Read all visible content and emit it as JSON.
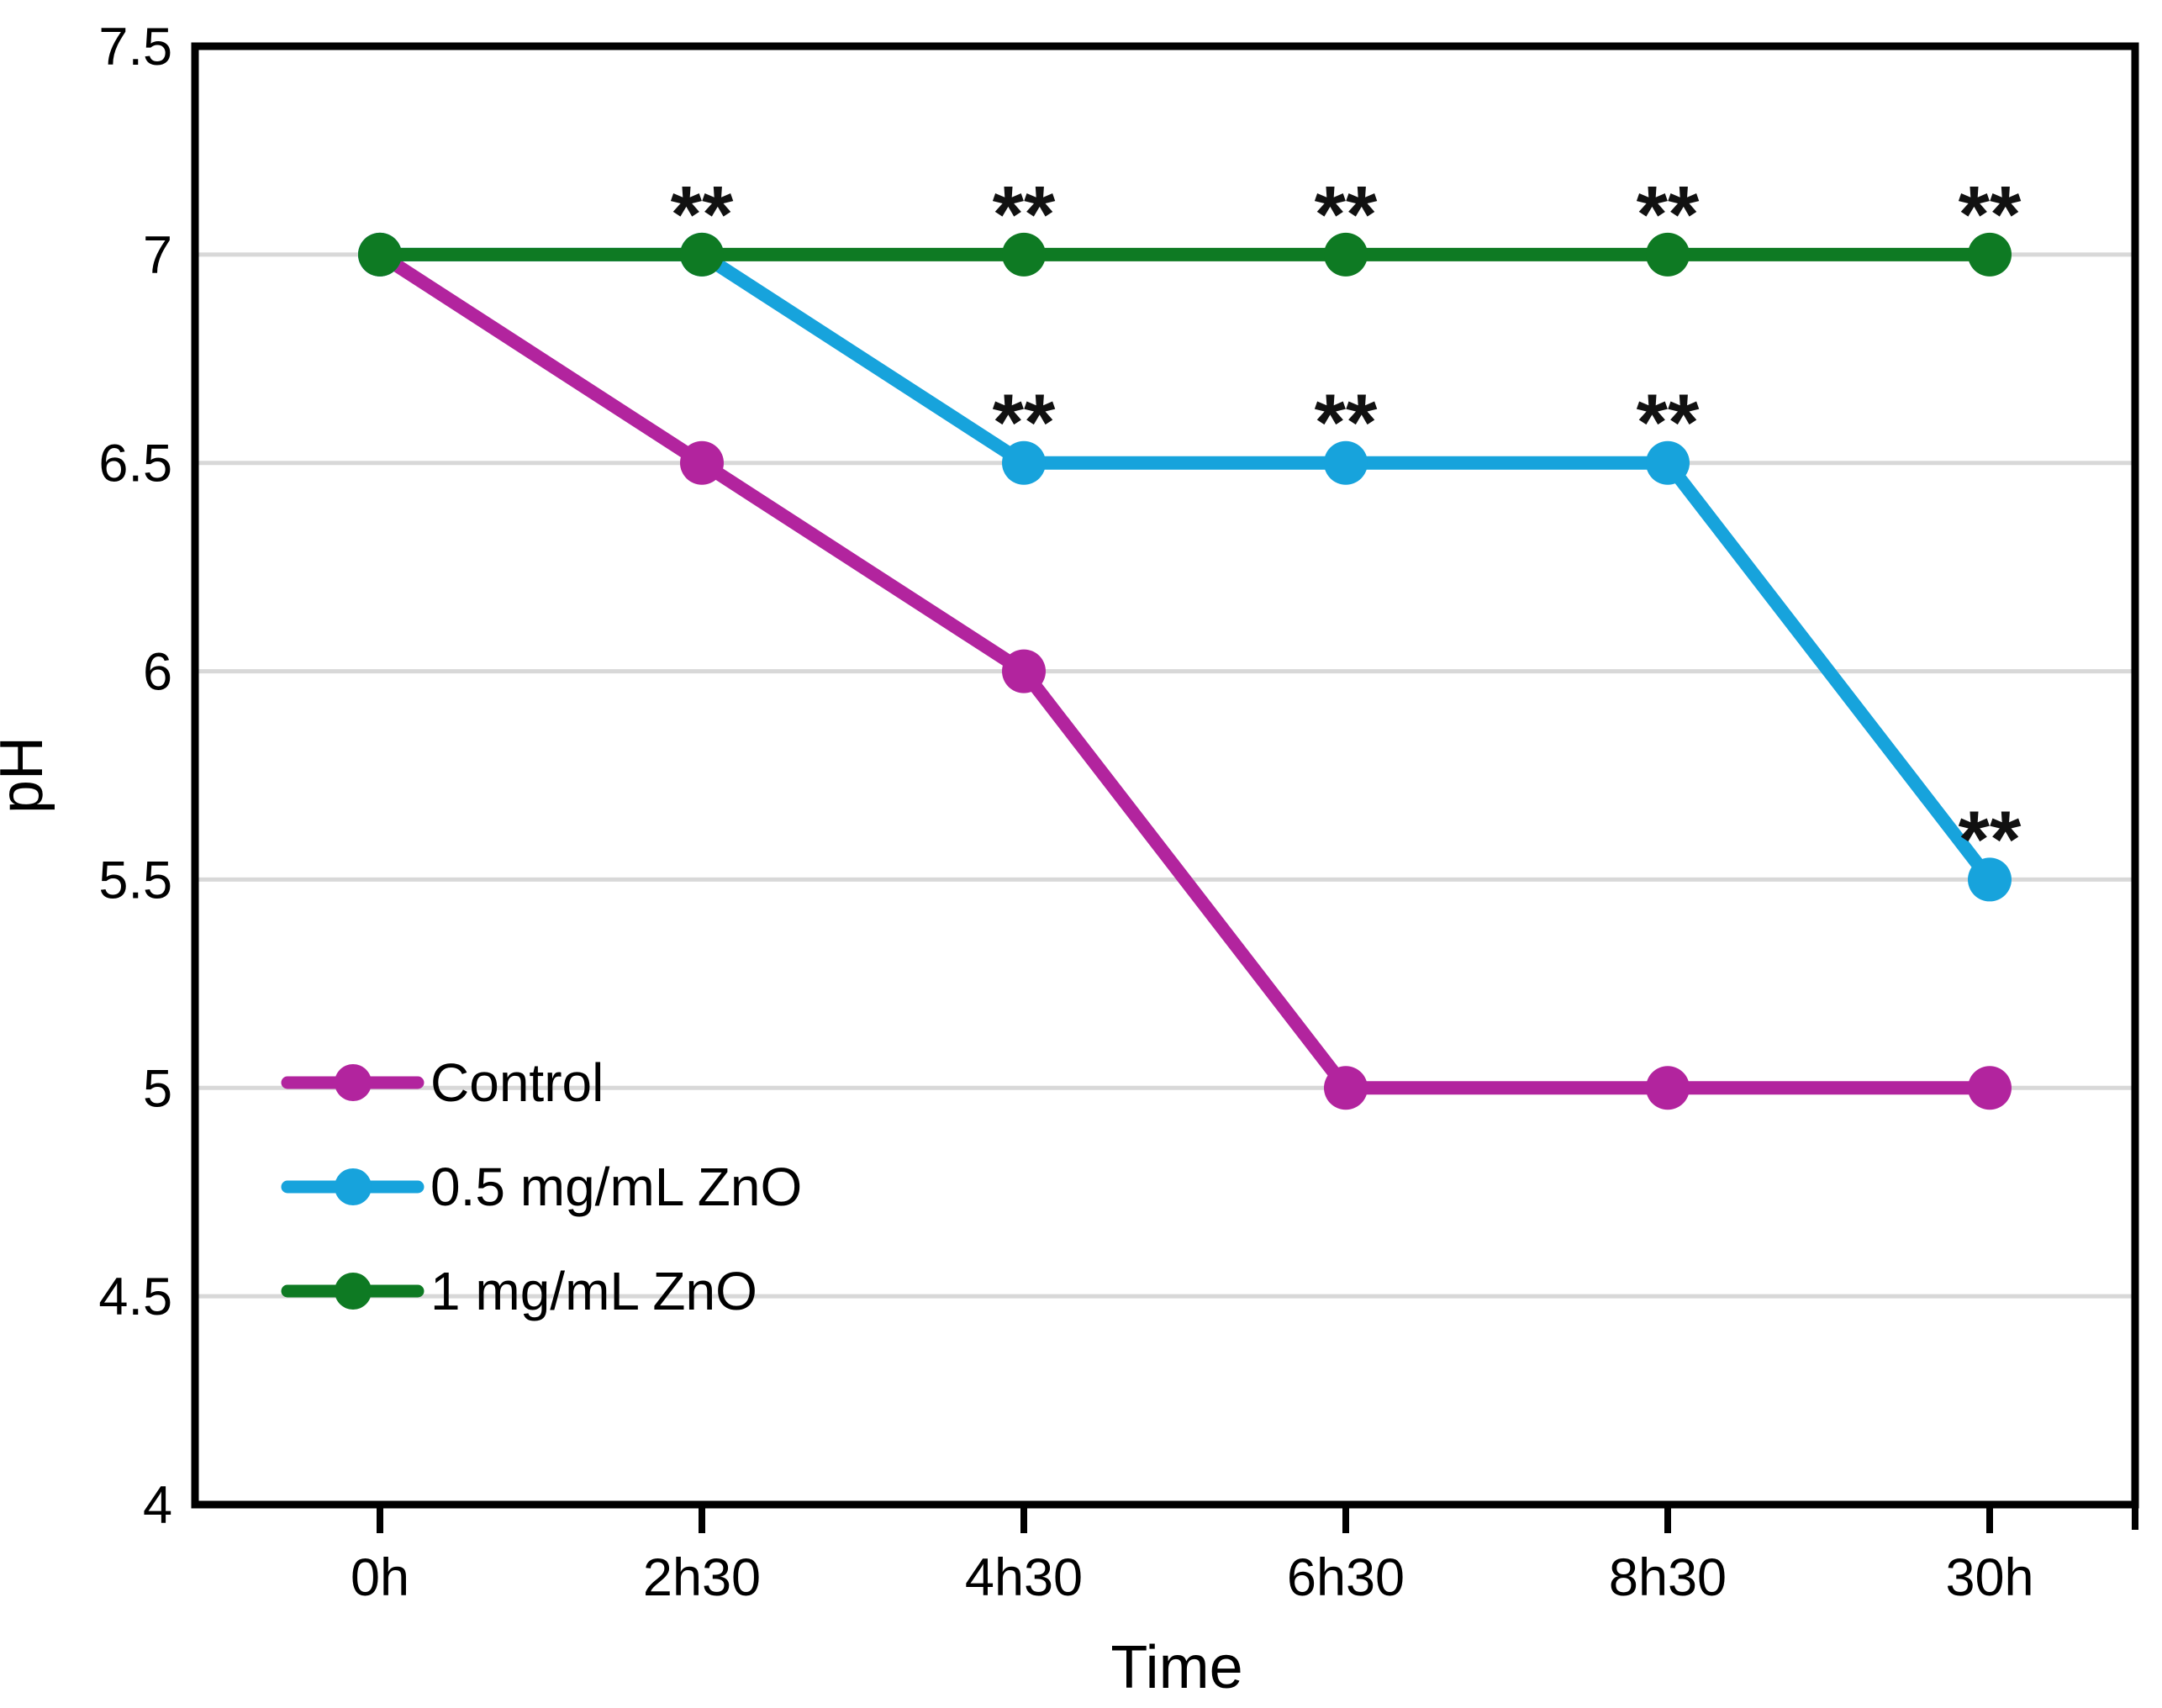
{
  "figure": {
    "background": "#ffffff",
    "axis_color": "#000000",
    "grid_color": "#d8d8d8",
    "text_color": "#000000"
  },
  "chart_data": {
    "type": "line",
    "title": "",
    "xlabel": "Time",
    "ylabel": "pH",
    "categories": [
      "0h",
      "2h30",
      "4h30",
      "6h30",
      "8h30",
      "30h"
    ],
    "ylim": [
      4,
      7.5
    ],
    "ytick_step": 0.5,
    "ytick_labels": [
      "4",
      "4.5",
      "5",
      "5.5",
      "6",
      "6.5",
      "7",
      "7.5"
    ],
    "grid": "horizontal",
    "legend_position": "inside-left",
    "significance_symbol": "**",
    "series": [
      {
        "name": "Control",
        "color": "#b2249e",
        "values": [
          7,
          6.5,
          6,
          5,
          5,
          5
        ],
        "significant_points": []
      },
      {
        "name": "0.5 mg/mL ZnO",
        "color": "#17a3dc",
        "values": [
          7,
          7,
          6.5,
          6.5,
          6.5,
          5.5
        ],
        "significant_points": [
          "4h30",
          "6h30",
          "8h30",
          "30h"
        ]
      },
      {
        "name": "1 mg/mL ZnO",
        "color": "#0e7a23",
        "values": [
          7,
          7,
          7,
          7,
          7,
          7
        ],
        "significant_points": [
          "2h30",
          "4h30",
          "6h30",
          "8h30",
          "30h"
        ]
      }
    ]
  }
}
